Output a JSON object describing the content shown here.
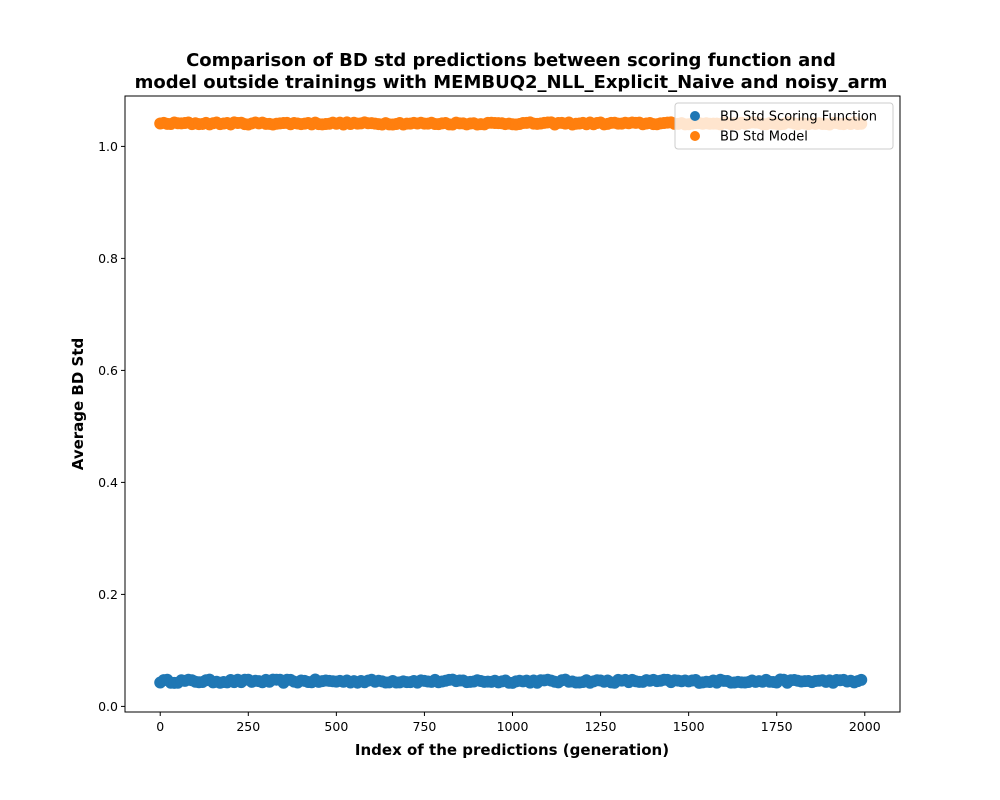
{
  "chart_data": {
    "type": "scatter",
    "title_lines": [
      "Comparison of BD std predictions between scoring function and",
      "model outside trainings with MEMBUQ2_NLL_Explicit_Naive and noisy_arm"
    ],
    "xlabel": "Index of the predictions (generation)",
    "ylabel": "Average BD Std",
    "xlim": [
      -100,
      2100
    ],
    "ylim": [
      -0.01,
      1.09
    ],
    "x_ticks": [
      0,
      250,
      500,
      750,
      1000,
      1250,
      1500,
      1750,
      2000
    ],
    "y_ticks": [
      0.0,
      0.2,
      0.4,
      0.6,
      0.8,
      1.0
    ],
    "x_tick_labels": [
      "0",
      "250",
      "500",
      "750",
      "1000",
      "1250",
      "1500",
      "1750",
      "2000"
    ],
    "y_tick_labels": [
      "0.0",
      "0.2",
      "0.4",
      "0.6",
      "0.8",
      "1.0"
    ],
    "grid": false,
    "legend_position": "top-right",
    "x_start": 0,
    "x_end": 1999,
    "x_step": 10,
    "series": [
      {
        "name": "BD Std Scoring Function",
        "color": "#1f77b4",
        "mean": 0.045,
        "jitter": 0.003
      },
      {
        "name": "BD Std Model",
        "color": "#ff7f0e",
        "mean": 1.041,
        "jitter": 0.002
      }
    ]
  }
}
